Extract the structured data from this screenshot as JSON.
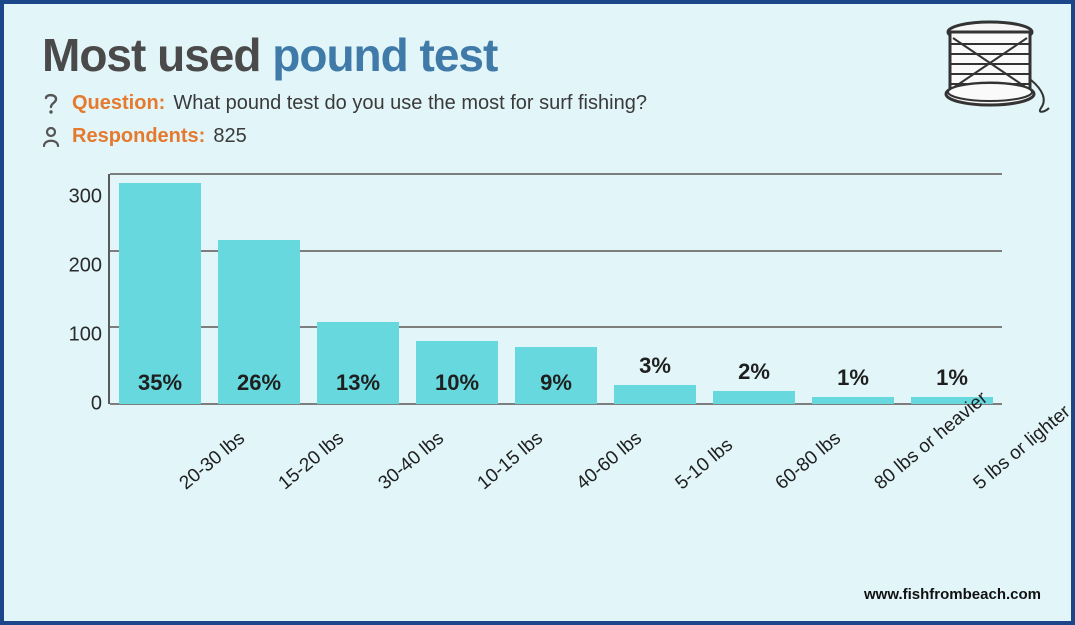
{
  "title": {
    "part1": "Most used ",
    "part2": "pound test",
    "color1": "#4a4a4a",
    "color2": "#3f7aa8"
  },
  "question": {
    "icon_name": "question-icon",
    "label": "Question:",
    "text": "What pound test do you use the most for surf fishing?"
  },
  "respondents": {
    "icon_name": "person-icon",
    "label": "Respondents:",
    "text": "825"
  },
  "chart": {
    "type": "bar",
    "ylim": [
      0,
      300
    ],
    "ytick_step": 100,
    "yticks": [
      "300",
      "200",
      "100",
      "0"
    ],
    "grid_color": "#7e7e7e",
    "axis_color": "#5a5a5a",
    "bar_color": "#66d8de",
    "background_color": "#e2f5f8",
    "label_fontsize": 22,
    "tick_fontsize": 20,
    "bars": [
      {
        "category": "20-30 lbs",
        "value": 288,
        "pct": "35%",
        "label_inside": true
      },
      {
        "category": "15-20 lbs",
        "value": 214,
        "pct": "26%",
        "label_inside": true
      },
      {
        "category": "30-40 lbs",
        "value": 107,
        "pct": "13%",
        "label_inside": true
      },
      {
        "category": "10-15 lbs",
        "value": 82,
        "pct": "10%",
        "label_inside": true
      },
      {
        "category": "40-60 lbs",
        "value": 74,
        "pct": "9%",
        "label_inside": true
      },
      {
        "category": "5-10 lbs",
        "value": 25,
        "pct": "3%",
        "label_inside": false
      },
      {
        "category": "60-80 lbs",
        "value": 17,
        "pct": "2%",
        "label_inside": false
      },
      {
        "category": "80 lbs or heavier",
        "value": 9,
        "pct": "1%",
        "label_inside": false
      },
      {
        "category": "5 lbs or lighter",
        "value": 9,
        "pct": "1%",
        "label_inside": false
      }
    ]
  },
  "source": "www.fishfrombeach.com",
  "frame_border_color": "#1c468a"
}
